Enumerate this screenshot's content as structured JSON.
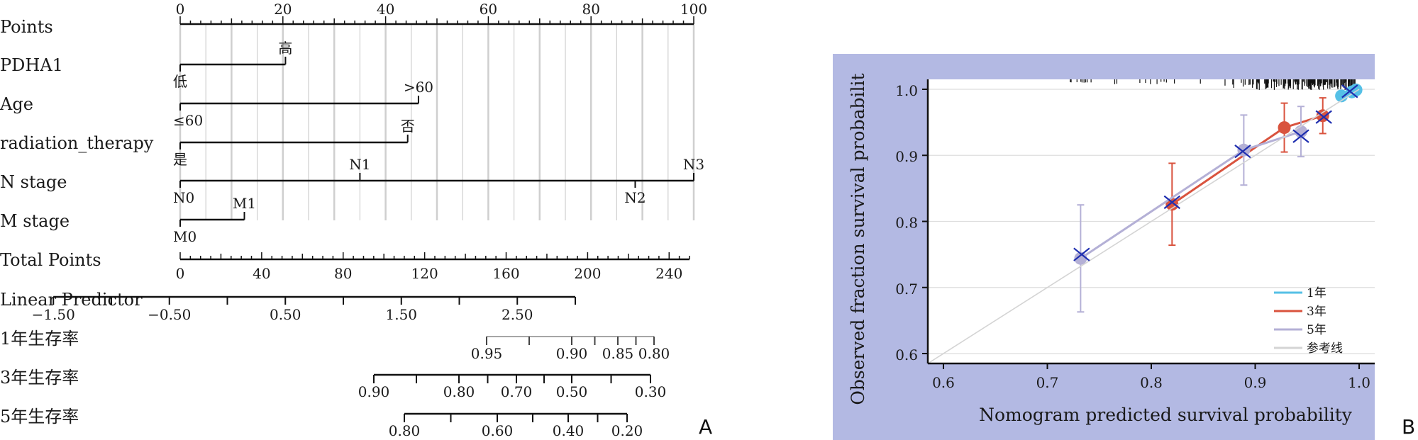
{
  "panel_labels": {
    "a": "A",
    "b": "B"
  },
  "chart_data": [
    {
      "type": "nomogram",
      "points_ticks": [
        "0",
        "20",
        "40",
        "60",
        "80",
        "100"
      ],
      "rows": [
        {
          "label": "Points"
        },
        {
          "label": "PDHA1",
          "levels": [
            {
              "text": "低",
              "points": 0,
              "pos": "below"
            },
            {
              "text": "高",
              "points": 20.5,
              "pos": "above"
            }
          ]
        },
        {
          "label": "Age",
          "levels": [
            {
              "text": "≤60",
              "points": 0,
              "pos": "below"
            },
            {
              "text": ">60",
              "points": 46.4,
              "pos": "above"
            }
          ]
        },
        {
          "label": "radiation_therapy",
          "levels": [
            {
              "text": "是",
              "points": 0,
              "pos": "below"
            },
            {
              "text": "否",
              "points": 44.3,
              "pos": "above"
            }
          ]
        },
        {
          "label": "N stage",
          "levels": [
            {
              "text": "N0",
              "points": 0,
              "pos": "below"
            },
            {
              "text": "N1",
              "points": 35.0,
              "pos": "above"
            },
            {
              "text": "N2",
              "points": 88.6,
              "pos": "below"
            },
            {
              "text": "N3",
              "points": 100,
              "pos": "above"
            }
          ]
        },
        {
          "label": "M stage",
          "levels": [
            {
              "text": "M0",
              "points": 0,
              "pos": "below"
            },
            {
              "text": "M1",
              "points": 12.5,
              "pos": "above"
            }
          ]
        },
        {
          "label": "Total Points",
          "ticks": [
            "0",
            "40",
            "80",
            "120",
            "160",
            "200",
            "240"
          ]
        },
        {
          "label": "Linear Predictor",
          "ticks": [
            "-1.50",
            "-0.50",
            "0.50",
            "1.50",
            "2.50"
          ]
        },
        {
          "label": "1年生存率",
          "ticks": [
            "0.95",
            "0.90",
            "0.85",
            "0.80"
          ]
        },
        {
          "label": "3年生存率",
          "ticks": [
            "0.90",
            "0.80",
            "0.70",
            "0.50",
            "0.30"
          ]
        },
        {
          "label": "5年生存率",
          "ticks": [
            "0.80",
            "0.60",
            "0.40",
            "0.20"
          ]
        }
      ]
    },
    {
      "type": "line",
      "xlabel": "Nomogram predicted survival probability",
      "ylabel": "Observed fraction survival probabilit",
      "xlim": [
        0.585,
        1.015
      ],
      "ylim": [
        0.585,
        1.015
      ],
      "xticks": [
        "0.6",
        "0.7",
        "0.8",
        "0.9",
        "1.0"
      ],
      "yticks": [
        "0.6",
        "0.7",
        "0.8",
        "0.9",
        "1.0"
      ],
      "grid": true,
      "legend_position": "bottom-right",
      "series": [
        {
          "name": "1年",
          "color": "#55c0e6",
          "x": [
            0.983,
            0.993,
            0.997
          ],
          "y": [
            0.99,
            0.996,
            0.999
          ],
          "err": [
            0.004,
            0.003,
            0.002
          ]
        },
        {
          "name": "3年",
          "color": "#d9533e",
          "x": [
            0.82,
            0.928,
            0.965
          ],
          "y": [
            0.826,
            0.942,
            0.96
          ],
          "err": [
            0.062,
            0.037,
            0.027
          ]
        },
        {
          "name": "5年",
          "color": "#b4b0d6",
          "x": [
            0.732,
            0.889,
            0.944
          ],
          "y": [
            0.744,
            0.908,
            0.936
          ],
          "err": [
            0.081,
            0.053,
            0.038
          ]
        },
        {
          "name": "参考线",
          "color": "#d4d4d4",
          "x": [
            0.585,
            1.0
          ],
          "y": [
            0.585,
            1.0
          ]
        }
      ],
      "crosses": [
        {
          "x": 0.733,
          "y": 0.75
        },
        {
          "x": 0.82,
          "y": 0.829
        },
        {
          "x": 0.888,
          "y": 0.906
        },
        {
          "x": 0.944,
          "y": 0.929
        },
        {
          "x": 0.966,
          "y": 0.958
        },
        {
          "x": 0.991,
          "y": 0.997
        }
      ]
    }
  ]
}
